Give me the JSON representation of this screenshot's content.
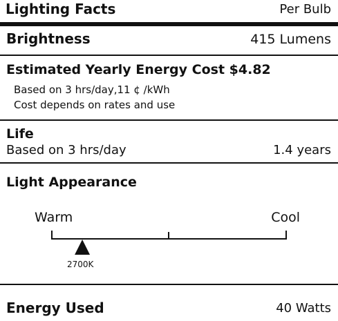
{
  "header": {
    "title": "Lighting Facts",
    "per_bulb": "Per Bulb"
  },
  "brightness": {
    "label": "Brightness",
    "value": "415 Lumens"
  },
  "energy_cost": {
    "heading": "Estimated Yearly Energy Cost $4.82",
    "note_1": "Based on 3 hrs/day,11 ¢ /kWh",
    "note_2": "Cost depends on rates and use"
  },
  "life": {
    "label": "Life",
    "basis": "Based on 3 hrs/day",
    "value": "1.4 years"
  },
  "light_appearance": {
    "label": "Light Appearance",
    "warm_label": "Warm",
    "cool_label": "Cool",
    "temperature": "2700K",
    "position_fraction": 0.13
  },
  "energy_used": {
    "label": "Energy Used",
    "value": "40 Watts"
  }
}
